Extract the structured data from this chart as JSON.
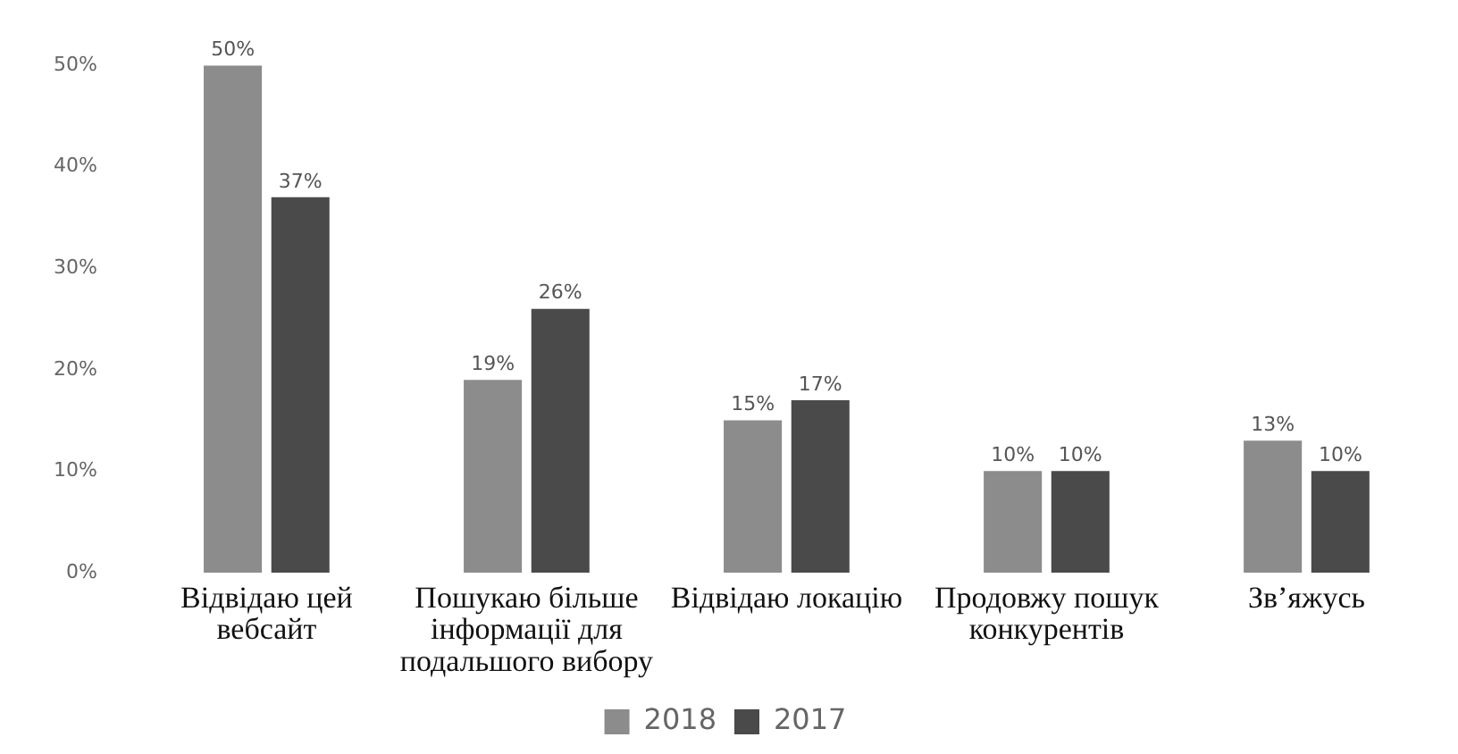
{
  "chart_data": {
    "type": "bar",
    "categories": [
      "Відвідаю цей вебсайт",
      "Пошукаю більше інформації для подальшого вибору",
      "Відвідаю локацію",
      "Продовжу пошук конкурентів",
      "Зв’яжусь"
    ],
    "series": [
      {
        "name": "2018",
        "color": "#8c8c8c",
        "values": [
          50,
          19,
          15,
          10,
          13
        ],
        "value_labels": [
          "50%",
          "19%",
          "15%",
          "10%",
          "13%"
        ]
      },
      {
        "name": "2017",
        "color": "#4a4a4a",
        "values": [
          37,
          26,
          17,
          10,
          10
        ],
        "value_labels": [
          "37%",
          "26%",
          "17%",
          "10%",
          "10%"
        ]
      }
    ],
    "ylim": [
      0,
      50
    ],
    "yticks": [
      {
        "value": 0,
        "label": "0%"
      },
      {
        "value": 10,
        "label": "10%"
      },
      {
        "value": 20,
        "label": "20%"
      },
      {
        "value": 30,
        "label": "30%"
      },
      {
        "value": 40,
        "label": "40%"
      },
      {
        "value": 50,
        "label": "50%"
      }
    ],
    "grid": false,
    "legend": "bottom"
  }
}
